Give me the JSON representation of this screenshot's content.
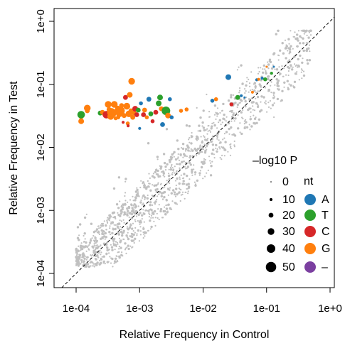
{
  "chart_data": {
    "type": "scatter",
    "xlabel": "Relative Frequency in Control",
    "ylabel": "Relative Frequency in Test",
    "scale": "log10",
    "xlim": [
      0.0001,
      1
    ],
    "ylim": [
      0.0001,
      1
    ],
    "x_ticks": [
      {
        "value": 0.0001,
        "label": "1e-04"
      },
      {
        "value": 0.001,
        "label": "1e-03"
      },
      {
        "value": 0.01,
        "label": "1e-02"
      },
      {
        "value": 0.1,
        "label": "1e-01"
      },
      {
        "value": 1,
        "label": "1e+0"
      }
    ],
    "y_ticks": [
      {
        "value": 0.0001,
        "label": "1e-04"
      },
      {
        "value": 0.001,
        "label": "1e-03"
      },
      {
        "value": 0.01,
        "label": "1e-02"
      },
      {
        "value": 0.1,
        "label": "1e-01"
      },
      {
        "value": 1,
        "label": "1e+0"
      }
    ],
    "reference_line": "y = x (dashed)",
    "legend_size": {
      "title": "–log10 P",
      "entries": [
        {
          "label": "0",
          "value": 0
        },
        {
          "label": "10",
          "value": 10
        },
        {
          "label": "20",
          "value": 20
        },
        {
          "label": "30",
          "value": 30
        },
        {
          "label": "40",
          "value": 40
        },
        {
          "label": "50",
          "value": 50
        }
      ]
    },
    "legend_color": {
      "title": "nt",
      "entries": [
        {
          "label": "A",
          "color": "#1f77b4"
        },
        {
          "label": "T",
          "color": "#2ca02c"
        },
        {
          "label": "C",
          "color": "#d62728"
        },
        {
          "label": "G",
          "color": "#ff7f0e"
        },
        {
          "label": "–",
          "color": "#7b3fa0"
        }
      ]
    },
    "background_color": "#c0c0c0",
    "significant_points": [
      {
        "x": 0.00012,
        "y": 0.034,
        "nt": "G",
        "p": 20
      },
      {
        "x": 0.00012,
        "y": 0.03,
        "nt": "G",
        "p": 15
      },
      {
        "x": 0.00012,
        "y": 0.026,
        "nt": "G",
        "p": 25
      },
      {
        "x": 0.00012,
        "y": 0.033,
        "nt": "T",
        "p": 35
      },
      {
        "x": 0.00015,
        "y": 0.042,
        "nt": "G",
        "p": 30
      },
      {
        "x": 0.00015,
        "y": 0.038,
        "nt": "G",
        "p": 20
      },
      {
        "x": 0.00024,
        "y": 0.035,
        "nt": "T",
        "p": 20
      },
      {
        "x": 0.00026,
        "y": 0.036,
        "nt": "G",
        "p": 20
      },
      {
        "x": 0.00028,
        "y": 0.034,
        "nt": "G",
        "p": 20
      },
      {
        "x": 0.0003,
        "y": 0.033,
        "nt": "C",
        "p": 35
      },
      {
        "x": 0.00032,
        "y": 0.048,
        "nt": "G",
        "p": 30
      },
      {
        "x": 0.00033,
        "y": 0.04,
        "nt": "G",
        "p": 20
      },
      {
        "x": 0.00035,
        "y": 0.031,
        "nt": "G",
        "p": 30
      },
      {
        "x": 0.00036,
        "y": 0.036,
        "nt": "G",
        "p": 40
      },
      {
        "x": 0.00038,
        "y": 0.034,
        "nt": "G",
        "p": 30
      },
      {
        "x": 0.0004,
        "y": 0.048,
        "nt": "G",
        "p": 30
      },
      {
        "x": 0.00042,
        "y": 0.029,
        "nt": "G",
        "p": 15
      },
      {
        "x": 0.00043,
        "y": 0.037,
        "nt": "G",
        "p": 25
      },
      {
        "x": 0.00045,
        "y": 0.042,
        "nt": "G",
        "p": 20
      },
      {
        "x": 0.00046,
        "y": 0.03,
        "nt": "G",
        "p": 15
      },
      {
        "x": 0.00048,
        "y": 0.034,
        "nt": "G",
        "p": 30
      },
      {
        "x": 0.0005,
        "y": 0.038,
        "nt": "G",
        "p": 40
      },
      {
        "x": 0.00052,
        "y": 0.046,
        "nt": "G",
        "p": 20
      },
      {
        "x": 0.00055,
        "y": 0.025,
        "nt": "C",
        "p": 10
      },
      {
        "x": 0.00057,
        "y": 0.032,
        "nt": "G",
        "p": 20
      },
      {
        "x": 0.0006,
        "y": 0.062,
        "nt": "C",
        "p": 20
      },
      {
        "x": 0.00063,
        "y": 0.045,
        "nt": "G",
        "p": 30
      },
      {
        "x": 0.00065,
        "y": 0.024,
        "nt": "G",
        "p": 15
      },
      {
        "x": 0.00066,
        "y": 0.022,
        "nt": "C",
        "p": 10
      },
      {
        "x": 0.00068,
        "y": 0.034,
        "nt": "G",
        "p": 30
      },
      {
        "x": 0.0007,
        "y": 0.068,
        "nt": "G",
        "p": 25
      },
      {
        "x": 0.00073,
        "y": 0.038,
        "nt": "G",
        "p": 20
      },
      {
        "x": 0.00075,
        "y": 0.112,
        "nt": "G",
        "p": 30
      },
      {
        "x": 0.00078,
        "y": 0.03,
        "nt": "G",
        "p": 20
      },
      {
        "x": 0.0008,
        "y": 0.036,
        "nt": "G",
        "p": 25
      },
      {
        "x": 0.00085,
        "y": 0.041,
        "nt": "C",
        "p": 25
      },
      {
        "x": 0.0009,
        "y": 0.033,
        "nt": "C",
        "p": 20
      },
      {
        "x": 0.00095,
        "y": 0.039,
        "nt": "T",
        "p": 20
      },
      {
        "x": 0.001,
        "y": 0.02,
        "nt": "A",
        "p": 10
      },
      {
        "x": 0.00105,
        "y": 0.05,
        "nt": "A",
        "p": 15
      },
      {
        "x": 0.00115,
        "y": 0.033,
        "nt": "C",
        "p": 20
      },
      {
        "x": 0.0012,
        "y": 0.039,
        "nt": "G",
        "p": 20
      },
      {
        "x": 0.0013,
        "y": 0.03,
        "nt": "G",
        "p": 15
      },
      {
        "x": 0.0014,
        "y": 0.058,
        "nt": "A",
        "p": 20
      },
      {
        "x": 0.0015,
        "y": 0.034,
        "nt": "T",
        "p": 20
      },
      {
        "x": 0.0016,
        "y": 0.026,
        "nt": "C",
        "p": 15
      },
      {
        "x": 0.0018,
        "y": 0.036,
        "nt": "C",
        "p": 20
      },
      {
        "x": 0.002,
        "y": 0.05,
        "nt": "T",
        "p": 25
      },
      {
        "x": 0.0021,
        "y": 0.062,
        "nt": "T",
        "p": 25
      },
      {
        "x": 0.0022,
        "y": 0.041,
        "nt": "G",
        "p": 20
      },
      {
        "x": 0.0023,
        "y": 0.023,
        "nt": "A",
        "p": 20
      },
      {
        "x": 0.0026,
        "y": 0.038,
        "nt": "T",
        "p": 40
      },
      {
        "x": 0.0028,
        "y": 0.032,
        "nt": "G",
        "p": 25
      },
      {
        "x": 0.003,
        "y": 0.058,
        "nt": "A",
        "p": 15
      },
      {
        "x": 0.0032,
        "y": 0.03,
        "nt": "A",
        "p": 15
      },
      {
        "x": 0.0045,
        "y": 0.038,
        "nt": "G",
        "p": 15
      },
      {
        "x": 0.0055,
        "y": 0.04,
        "nt": "G",
        "p": 15
      },
      {
        "x": 0.014,
        "y": 0.055,
        "nt": "A",
        "p": 15
      },
      {
        "x": 0.016,
        "y": 0.058,
        "nt": "G",
        "p": 15
      },
      {
        "x": 0.025,
        "y": 0.13,
        "nt": "A",
        "p": 25
      },
      {
        "x": 0.028,
        "y": 0.048,
        "nt": "C",
        "p": 15
      },
      {
        "x": 0.035,
        "y": 0.062,
        "nt": "T",
        "p": 20
      },
      {
        "x": 0.04,
        "y": 0.066,
        "nt": "A",
        "p": 10
      },
      {
        "x": 0.045,
        "y": 0.062,
        "nt": "A",
        "p": 5
      },
      {
        "x": 0.06,
        "y": 0.075,
        "nt": "G",
        "p": 10
      },
      {
        "x": 0.07,
        "y": 0.118,
        "nt": "A",
        "p": 10
      },
      {
        "x": 0.075,
        "y": 0.12,
        "nt": "G",
        "p": 10
      },
      {
        "x": 0.085,
        "y": 0.125,
        "nt": "A",
        "p": 10
      },
      {
        "x": 0.095,
        "y": 0.12,
        "nt": "T",
        "p": 15
      },
      {
        "x": 0.1,
        "y": 0.19,
        "nt": "G",
        "p": 5
      },
      {
        "x": 0.12,
        "y": 0.15,
        "nt": "T",
        "p": 10
      },
      {
        "x": 0.13,
        "y": 0.19,
        "nt": "A",
        "p": 5
      }
    ]
  }
}
